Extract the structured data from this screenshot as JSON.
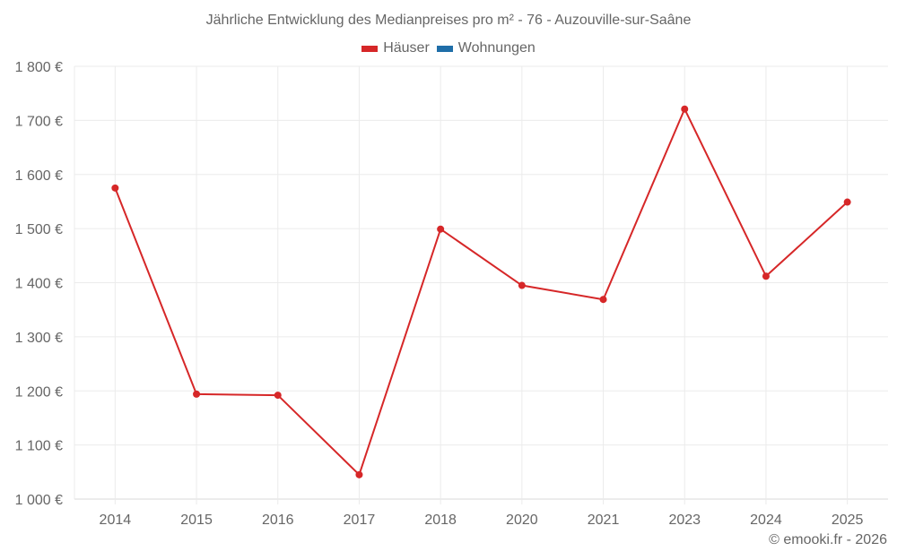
{
  "chart_data": {
    "type": "line",
    "title": "Jährliche Entwicklung des Medianpreises pro m² - 76 - Auzouville-sur-Saâne",
    "categories": [
      "2014",
      "2015",
      "2016",
      "2017",
      "2018",
      "2020",
      "2021",
      "2023",
      "2024",
      "2025"
    ],
    "series": [
      {
        "name": "Häuser",
        "color": "#d62728",
        "values": [
          1575,
          1194,
          1192,
          1045,
          1499,
          1395,
          1369,
          1721,
          1412,
          1549
        ]
      },
      {
        "name": "Wohnungen",
        "color": "#1f6ea8",
        "values": []
      }
    ],
    "xlabel": "",
    "ylabel": "",
    "ylim": [
      1000,
      1800
    ],
    "yticks": [
      1000,
      1100,
      1200,
      1300,
      1400,
      1500,
      1600,
      1700,
      1800
    ],
    "ytick_labels": [
      "1 000 €",
      "1 100 €",
      "1 200 €",
      "1 300 €",
      "1 400 €",
      "1 500 €",
      "1 600 €",
      "1 700 €",
      "1 800 €"
    ],
    "grid": true,
    "legend_position": "top"
  },
  "header": {
    "title": "Jährliche Entwicklung des Medianpreises pro m² - 76 - Auzouville-sur-Saâne"
  },
  "legend": {
    "items": [
      {
        "label": "Häuser",
        "color": "#d62728"
      },
      {
        "label": "Wohnungen",
        "color": "#1f6ea8"
      }
    ]
  },
  "footer": {
    "credit": "© emooki.fr - 2026"
  }
}
